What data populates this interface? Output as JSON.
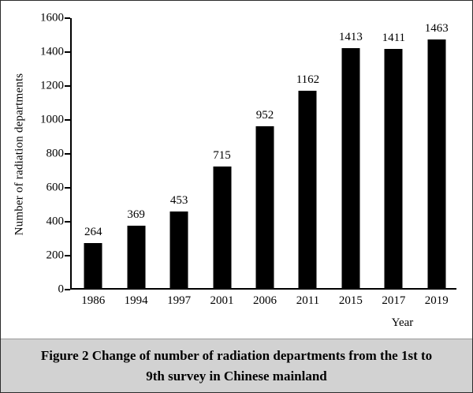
{
  "figure": {
    "caption": "Figure 2   Change of number of radiation departments from the 1st to 9th survey in Chinese mainland"
  },
  "chart_data": {
    "type": "bar",
    "categories": [
      "1986",
      "1994",
      "1997",
      "2001",
      "2006",
      "2011",
      "2015",
      "2017",
      "2019"
    ],
    "values": [
      264,
      369,
      453,
      715,
      952,
      1162,
      1413,
      1411,
      1463
    ],
    "title": "",
    "xlabel": "Year",
    "ylabel": "Number of radiation departments",
    "ylim": [
      0,
      1600
    ],
    "ytick_step": 200,
    "bar_color": "#000000",
    "grid": false,
    "legend": "none",
    "value_labels": "above bars"
  }
}
